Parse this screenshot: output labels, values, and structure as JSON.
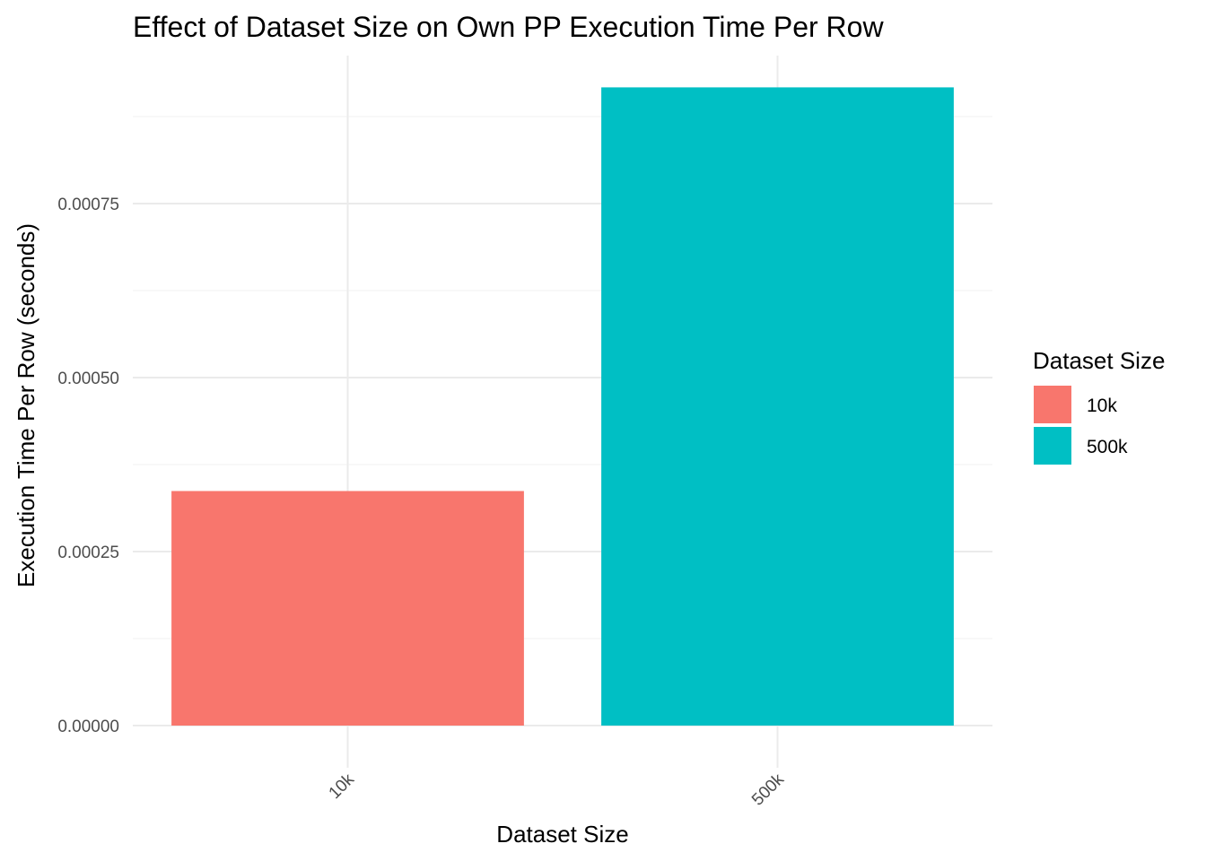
{
  "chart_data": {
    "type": "bar",
    "title": "Effect of Dataset Size on Own PP Execution Time Per Row",
    "xlabel": "Dataset Size",
    "ylabel": "Execution Time Per Row (seconds)",
    "categories": [
      "10k",
      "500k"
    ],
    "values": [
      0.000337,
      0.000917
    ],
    "colors": [
      "#F8766D",
      "#00BFC4"
    ],
    "ylim": [
      0,
      0.00095
    ],
    "yticks": [
      0,
      0.00025,
      0.0005,
      0.00075
    ],
    "ytick_labels": [
      "0.00000",
      "0.00025",
      "0.00050",
      "0.00075"
    ],
    "x_tick_rotation": 45,
    "grid": true,
    "legend": {
      "title": "Dataset Size",
      "position": "right",
      "entries": [
        "10k",
        "500k"
      ]
    }
  }
}
